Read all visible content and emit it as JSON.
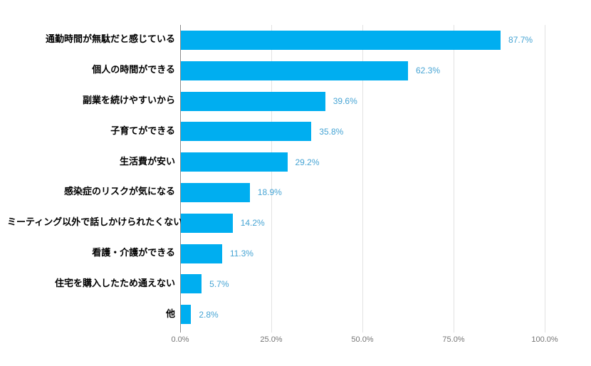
{
  "chart_data": {
    "type": "bar",
    "orientation": "horizontal",
    "title": "",
    "xlabel": "",
    "ylabel": "",
    "categories": [
      "通勤時間が無駄だと感じている",
      "個人の時間ができる",
      "副業を続けやすいから",
      "子育てができる",
      "生活費が安い",
      "感染症のリスクが気になる",
      "ミーティング以外で話しかけられたくない",
      "看護・介護ができる",
      "住宅を購入したため通えない",
      "他"
    ],
    "values": [
      87.7,
      62.3,
      39.6,
      35.8,
      29.2,
      18.9,
      14.2,
      11.3,
      5.7,
      2.8
    ],
    "value_labels": [
      "87.7%",
      "62.3%",
      "39.6%",
      "35.8%",
      "29.2%",
      "18.9%",
      "14.2%",
      "11.3%",
      "5.7%",
      "2.8%"
    ],
    "x_ticks": [
      {
        "label": "0.0%",
        "value": 0
      },
      {
        "label": "25.0%",
        "value": 25
      },
      {
        "label": "50.0%",
        "value": 50
      },
      {
        "label": "75.0%",
        "value": 75
      },
      {
        "label": "100.0%",
        "value": 100
      }
    ],
    "xlim": [
      0,
      100
    ],
    "grid": "vertical",
    "legend": "none",
    "colors": {
      "bar": "#00AEF0",
      "value_label": "#46A4D4",
      "category_label": "#000000",
      "axis_label": "#757575",
      "gridline": "#E2E2E2",
      "axis_line": "#8C8C8C",
      "background": "#FFFFFF"
    }
  }
}
